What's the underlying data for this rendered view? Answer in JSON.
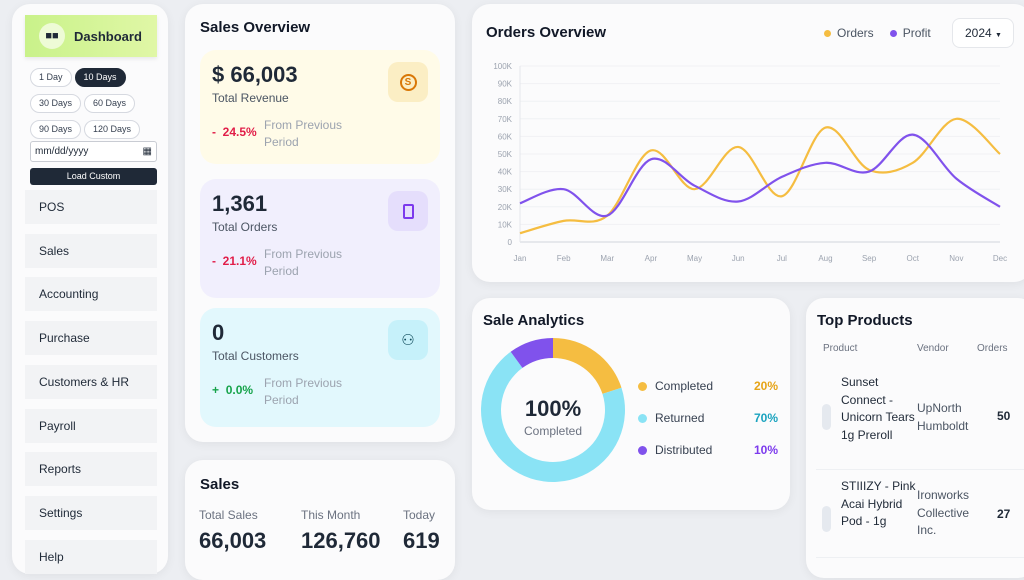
{
  "sidebar": {
    "dashboard": "Dashboard",
    "ranges": [
      "1 Day",
      "10 Days",
      "30 Days",
      "60 Days",
      "90 Days",
      "120 Days"
    ],
    "active_range": "10 Days",
    "date_placeholder": "mm/dd/yyyy",
    "load_custom": "Load Custom",
    "items": [
      "POS",
      "Sales",
      "Accounting",
      "Purchase",
      "Customers & HR",
      "Payroll",
      "Reports",
      "Settings",
      "Help"
    ]
  },
  "sales_overview": {
    "title": "Sales Overview",
    "cards": [
      {
        "value": "$ 66,003",
        "label": "Total Revenue",
        "sign": "-",
        "change": "24.5%",
        "note": "From Previous Period",
        "icon": "dollar-icon",
        "bg": "#fffbe8",
        "color": "#e11d48"
      },
      {
        "value": "1,361",
        "label": "Total Orders",
        "sign": "-",
        "change": "21.1%",
        "note": "From Previous Period",
        "icon": "clipboard-icon",
        "bg": "#f1effd",
        "color": "#e11d48"
      },
      {
        "value": "0",
        "label": "Total Customers",
        "sign": "+",
        "change": "0.0%",
        "note": "From Previous Period",
        "icon": "user-icon",
        "bg": "#e2f8fd",
        "color": "#16a34a"
      }
    ]
  },
  "sales": {
    "title": "Sales",
    "cols": [
      {
        "label": "Total Sales",
        "value": "66,003"
      },
      {
        "label": "This Month",
        "value": "126,760"
      },
      {
        "label": "Today",
        "value": "619"
      }
    ]
  },
  "orders_overview": {
    "title": "Orders Overview",
    "year": "2024",
    "legend": [
      "Orders",
      "Profit"
    ]
  },
  "chart_data": {
    "type": "line",
    "categories": [
      "Jan",
      "Feb",
      "Mar",
      "Apr",
      "May",
      "Jun",
      "Jul",
      "Aug",
      "Sep",
      "Oct",
      "Nov",
      "Dec"
    ],
    "ylim": [
      0,
      100000
    ],
    "yticks": [
      "0",
      "10K",
      "20K",
      "30K",
      "40K",
      "50K",
      "60K",
      "70K",
      "80K",
      "90K",
      "100K"
    ],
    "grid": true,
    "legend": "top-right",
    "series": [
      {
        "name": "Orders",
        "color": "#f5bd41",
        "values": [
          5000,
          12000,
          15000,
          52000,
          30000,
          54000,
          26000,
          65000,
          41000,
          45000,
          70000,
          50000
        ]
      },
      {
        "name": "Profit",
        "color": "#8052ec",
        "values": [
          22000,
          30000,
          15000,
          47000,
          32000,
          23000,
          37000,
          45000,
          40000,
          61000,
          36000,
          20000
        ]
      }
    ]
  },
  "sale_analytics": {
    "title": "Sale Analytics",
    "center_value": "100%",
    "center_label": "Completed",
    "items": [
      {
        "label": "Completed",
        "pct": "20%",
        "value": 20,
        "color": "#f5bd41"
      },
      {
        "label": "Returned",
        "pct": "70%",
        "value": 70,
        "color": "#8ae3f5"
      },
      {
        "label": "Distributed",
        "pct": "10%",
        "value": 10,
        "color": "#8052ec"
      }
    ]
  },
  "top_products": {
    "title": "Top Products",
    "headers": [
      "Product",
      "Vendor",
      "Orders"
    ],
    "rows": [
      {
        "product": "Sunset Connect - Unicorn Tears 1g Preroll",
        "vendor": "UpNorth Humboldt",
        "orders": "50"
      },
      {
        "product": "STIIIZY - Pink Acai Hybrid Pod - 1g",
        "vendor": "Ironworks Collective Inc.",
        "orders": "27"
      }
    ]
  }
}
